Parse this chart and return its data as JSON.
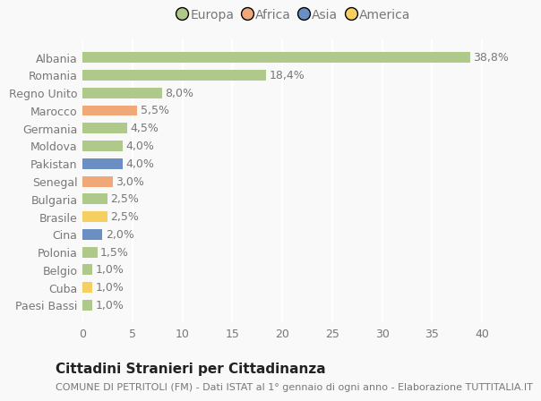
{
  "countries": [
    "Paesi Bassi",
    "Cuba",
    "Belgio",
    "Polonia",
    "Cina",
    "Brasile",
    "Bulgaria",
    "Senegal",
    "Pakistan",
    "Moldova",
    "Germania",
    "Marocco",
    "Regno Unito",
    "Romania",
    "Albania"
  ],
  "values": [
    1.0,
    1.0,
    1.0,
    1.5,
    2.0,
    2.5,
    2.5,
    3.0,
    4.0,
    4.0,
    4.5,
    5.5,
    8.0,
    18.4,
    38.8
  ],
  "labels": [
    "1,0%",
    "1,0%",
    "1,0%",
    "1,5%",
    "2,0%",
    "2,5%",
    "2,5%",
    "3,0%",
    "4,0%",
    "4,0%",
    "4,5%",
    "5,5%",
    "8,0%",
    "18,4%",
    "38,8%"
  ],
  "continents": [
    "Europa",
    "America",
    "Europa",
    "Europa",
    "Asia",
    "America",
    "Europa",
    "Africa",
    "Asia",
    "Europa",
    "Europa",
    "Africa",
    "Europa",
    "Europa",
    "Europa"
  ],
  "continent_colors": {
    "Europa": "#aec98a",
    "Africa": "#f0a878",
    "Asia": "#6b8fc2",
    "America": "#f5d060"
  },
  "legend_order": [
    "Europa",
    "Africa",
    "Asia",
    "America"
  ],
  "title": "Cittadini Stranieri per Cittadinanza",
  "subtitle": "COMUNE DI PETRITOLI (FM) - Dati ISTAT al 1° gennaio di ogni anno - Elaborazione TUTTITALIA.IT",
  "xlabel_vals": [
    0,
    5,
    10,
    15,
    20,
    25,
    30,
    35,
    40
  ],
  "xlim": [
    0,
    42.5
  ],
  "bg_color": "#f9f9f9",
  "grid_color": "#ffffff",
  "bar_height": 0.6,
  "label_fontsize": 9,
  "title_fontsize": 11,
  "subtitle_fontsize": 8,
  "tick_fontsize": 9,
  "legend_fontsize": 10,
  "text_color": "#777777",
  "title_color": "#222222"
}
